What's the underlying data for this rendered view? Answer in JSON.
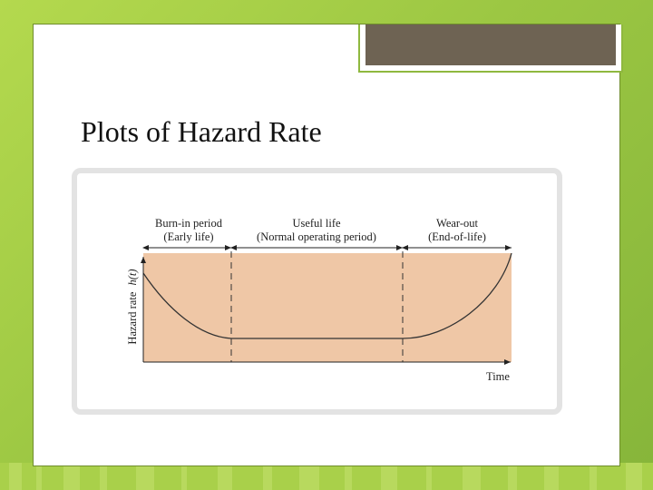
{
  "slide": {
    "title": "Plots of Hazard Rate"
  },
  "diagram": {
    "periods": [
      {
        "name": "Burn-in period",
        "detail": "(Early life)"
      },
      {
        "name": "Useful life",
        "detail": "(Normal operating period)"
      },
      {
        "name": "Wear-out",
        "detail": "(End-of-life)"
      }
    ],
    "y_label": "Hazard rate",
    "y_symbol": "h(t)",
    "x_label": "Time"
  },
  "colors": {
    "background_green": "#9cc743",
    "accent_brown": "#6e6353",
    "plot_fill": "#efc7a6"
  }
}
